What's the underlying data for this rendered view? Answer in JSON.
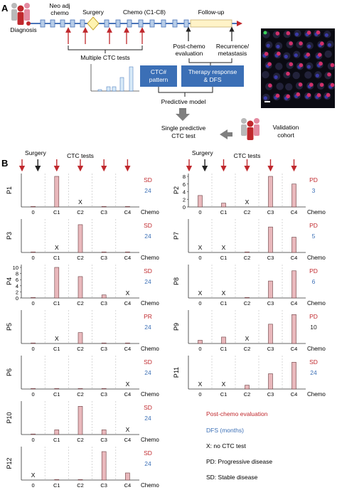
{
  "panel_a": {
    "label": "A",
    "timeline": {
      "neo_adj": "Neo adj",
      "neo_adj_line2": "chemo",
      "surgery": "Surgery",
      "chemo": "Chemo (C1-C8)",
      "follow_up": "Follow-up",
      "diagnosis": "Diagnosis",
      "multiple_ctc": "Multiple CTC tests",
      "post_chemo_1": "Post-chemo",
      "post_chemo_2": "evaluation",
      "recurrence_1": "Recurrence/",
      "recurrence_2": "metastasis"
    },
    "boxes": {
      "ctc_pattern_1": "CTC#",
      "ctc_pattern_2": "pattern",
      "therapy_1": "Therapy response",
      "therapy_2": "& DFS"
    },
    "predictive_model": "Predictive model",
    "single_1": "Single predictive",
    "single_2": "CTC test",
    "validation_1": "Validation",
    "validation_2": "cohort",
    "colors": {
      "box": "#3b6fb6",
      "arrow_red": "#c0282d",
      "timeline": "#4a74b8",
      "gray_arrow": "#7f7f7f"
    }
  },
  "panel_b": {
    "label": "B",
    "surgery": "Surgery",
    "ctc_tests": "CTC tests",
    "chemo_label": "Chemo",
    "x_categories": [
      "0",
      "C1",
      "C2",
      "C3",
      "C4"
    ],
    "legend": {
      "post_chemo": "Post-chemo evaluation",
      "dfs": "DFS (months)",
      "no_ctc": "X: no CTC test",
      "pd": "PD: Progressive disease",
      "sd": "SD: Stable disease"
    }
  },
  "chart_data": [
    {
      "type": "bar",
      "patient": "P1",
      "categories": [
        "0",
        "C1",
        "C2",
        "C3",
        "C4"
      ],
      "values": [
        0,
        3,
        null,
        0,
        0
      ],
      "ylim": [
        0,
        3
      ],
      "yticks": [],
      "status": "SD",
      "dfs": "24"
    },
    {
      "type": "bar",
      "patient": "P3",
      "categories": [
        "0",
        "C1",
        "C2",
        "C3",
        "C4"
      ],
      "values": [
        0,
        null,
        3,
        0,
        0
      ],
      "ylim": [
        0,
        3.3
      ],
      "yticks": [],
      "status": "SD",
      "dfs": "24"
    },
    {
      "type": "bar",
      "patient": "P4",
      "categories": [
        "0",
        "C1",
        "C2",
        "C3",
        "C4"
      ],
      "values": [
        0,
        10,
        7,
        1,
        null
      ],
      "ylim": [
        0,
        10
      ],
      "yticks": [
        0,
        2,
        4,
        6,
        8,
        10
      ],
      "status": "SD",
      "dfs": "24"
    },
    {
      "type": "bar",
      "patient": "P5",
      "categories": [
        "0",
        "C1",
        "C2",
        "C3",
        "C4"
      ],
      "values": [
        0,
        null,
        1,
        0,
        0
      ],
      "ylim": [
        0,
        2.8
      ],
      "yticks": [],
      "status": "PR",
      "dfs": "24"
    },
    {
      "type": "bar",
      "patient": "P6",
      "categories": [
        "0",
        "C1",
        "C2",
        "C3",
        "C4"
      ],
      "values": [
        0,
        0,
        0,
        0,
        null
      ],
      "ylim": [
        0,
        3
      ],
      "yticks": [],
      "status": "SD",
      "dfs": "24"
    },
    {
      "type": "bar",
      "patient": "P10",
      "categories": [
        "0",
        "C1",
        "C2",
        "C3",
        "C4"
      ],
      "values": [
        0,
        1,
        6,
        1,
        null
      ],
      "ylim": [
        0,
        6.5
      ],
      "yticks": [],
      "status": "SD",
      "dfs": "24"
    },
    {
      "type": "bar",
      "patient": "P12",
      "categories": [
        "0",
        "C1",
        "C2",
        "C3",
        "C4"
      ],
      "values": [
        null,
        0,
        0,
        4,
        1
      ],
      "ylim": [
        0,
        4.3
      ],
      "yticks": [],
      "status": "SD",
      "dfs": "24"
    },
    {
      "type": "bar",
      "patient": "P2",
      "categories": [
        "0",
        "C1",
        "C2",
        "C3",
        "C4"
      ],
      "values": [
        3,
        1,
        null,
        8,
        6
      ],
      "ylim": [
        0,
        8
      ],
      "yticks": [
        0,
        2,
        4,
        6,
        8
      ],
      "status": "PD",
      "dfs": "3"
    },
    {
      "type": "bar",
      "patient": "P7",
      "categories": [
        "0",
        "C1",
        "C2",
        "C3",
        "C4"
      ],
      "values": [
        null,
        null,
        0,
        5,
        3
      ],
      "ylim": [
        0,
        6
      ],
      "yticks": [],
      "status": "PD",
      "dfs": "5"
    },
    {
      "type": "bar",
      "patient": "P8",
      "categories": [
        "0",
        "C1",
        "C2",
        "C3",
        "C4"
      ],
      "values": [
        null,
        null,
        0,
        5,
        8
      ],
      "ylim": [
        0,
        9
      ],
      "yticks": [],
      "status": "PD",
      "dfs": "6"
    },
    {
      "type": "bar",
      "patient": "P9",
      "categories": [
        "0",
        "C1",
        "C2",
        "C3",
        "C4"
      ],
      "values": [
        1,
        2,
        null,
        6,
        9
      ],
      "ylim": [
        0,
        9.5
      ],
      "yticks": [],
      "status": "PD",
      "dfs": "10"
    },
    {
      "type": "bar",
      "patient": "P11",
      "categories": [
        "0",
        "C1",
        "C2",
        "C3",
        "C4"
      ],
      "values": [
        null,
        null,
        1,
        4,
        7
      ],
      "ylim": [
        0,
        8
      ],
      "yticks": [],
      "status": "SD",
      "dfs": "24"
    }
  ]
}
